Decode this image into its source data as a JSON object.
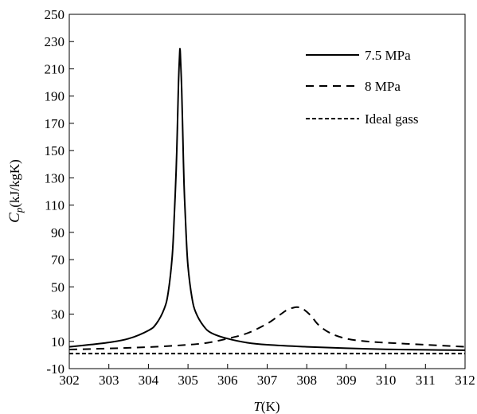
{
  "chart_data": {
    "type": "line",
    "title": "",
    "xlabel": "T(K)",
    "xlabel_parts": {
      "var": "T",
      "unit": "(K)"
    },
    "ylabel": "Cp(kJ/kgK)",
    "ylabel_parts": {
      "var": "C",
      "sub": "p",
      "unit": "(kJ/kgK)"
    },
    "xlim": [
      302,
      312
    ],
    "ylim": [
      -10,
      250
    ],
    "xticks": [
      302,
      303,
      304,
      305,
      306,
      307,
      308,
      309,
      310,
      311,
      312
    ],
    "yticks": [
      -10,
      10,
      30,
      50,
      70,
      90,
      110,
      130,
      150,
      170,
      190,
      210,
      230,
      250
    ],
    "grid": false,
    "legend_position": "top-right",
    "series": [
      {
        "name": "7.5 MPa",
        "style": "solid",
        "color": "#000000",
        "x": [
          302.0,
          302.5,
          303.0,
          303.5,
          304.0,
          304.2,
          304.4,
          304.5,
          304.6,
          304.65,
          304.7,
          304.73,
          304.76,
          304.79,
          304.8,
          304.81,
          304.84,
          304.87,
          304.9,
          304.95,
          305.0,
          305.1,
          305.2,
          305.4,
          305.6,
          306.0,
          306.5,
          307.0,
          308.0,
          309.0,
          310.0,
          311.0,
          312.0
        ],
        "y": [
          6,
          7.5,
          9.2,
          12,
          18,
          23,
          34,
          46,
          72,
          100,
          135,
          165,
          200,
          222,
          224,
          218,
          195,
          160,
          125,
          90,
          65,
          42,
          31,
          21,
          16,
          12,
          9,
          7.5,
          6,
          5,
          4.2,
          3.8,
          3.5
        ]
      },
      {
        "name": "8 MPa",
        "style": "dashed",
        "color": "#000000",
        "x": [
          302.0,
          303.0,
          304.0,
          305.0,
          305.5,
          306.0,
          306.5,
          307.0,
          307.3,
          307.5,
          307.7,
          307.8,
          307.9,
          308.1,
          308.3,
          308.6,
          309.0,
          309.5,
          310.0,
          311.0,
          312.0
        ],
        "y": [
          4,
          4.8,
          5.8,
          7.5,
          9,
          12,
          16,
          23,
          29,
          33,
          35,
          35,
          34,
          29,
          22,
          16,
          12,
          10,
          9,
          7.5,
          6
        ]
      },
      {
        "name": "Ideal gass",
        "style": "short-dashed",
        "color": "#000000",
        "x": [
          302,
          312
        ],
        "y": [
          1,
          1
        ]
      }
    ]
  }
}
